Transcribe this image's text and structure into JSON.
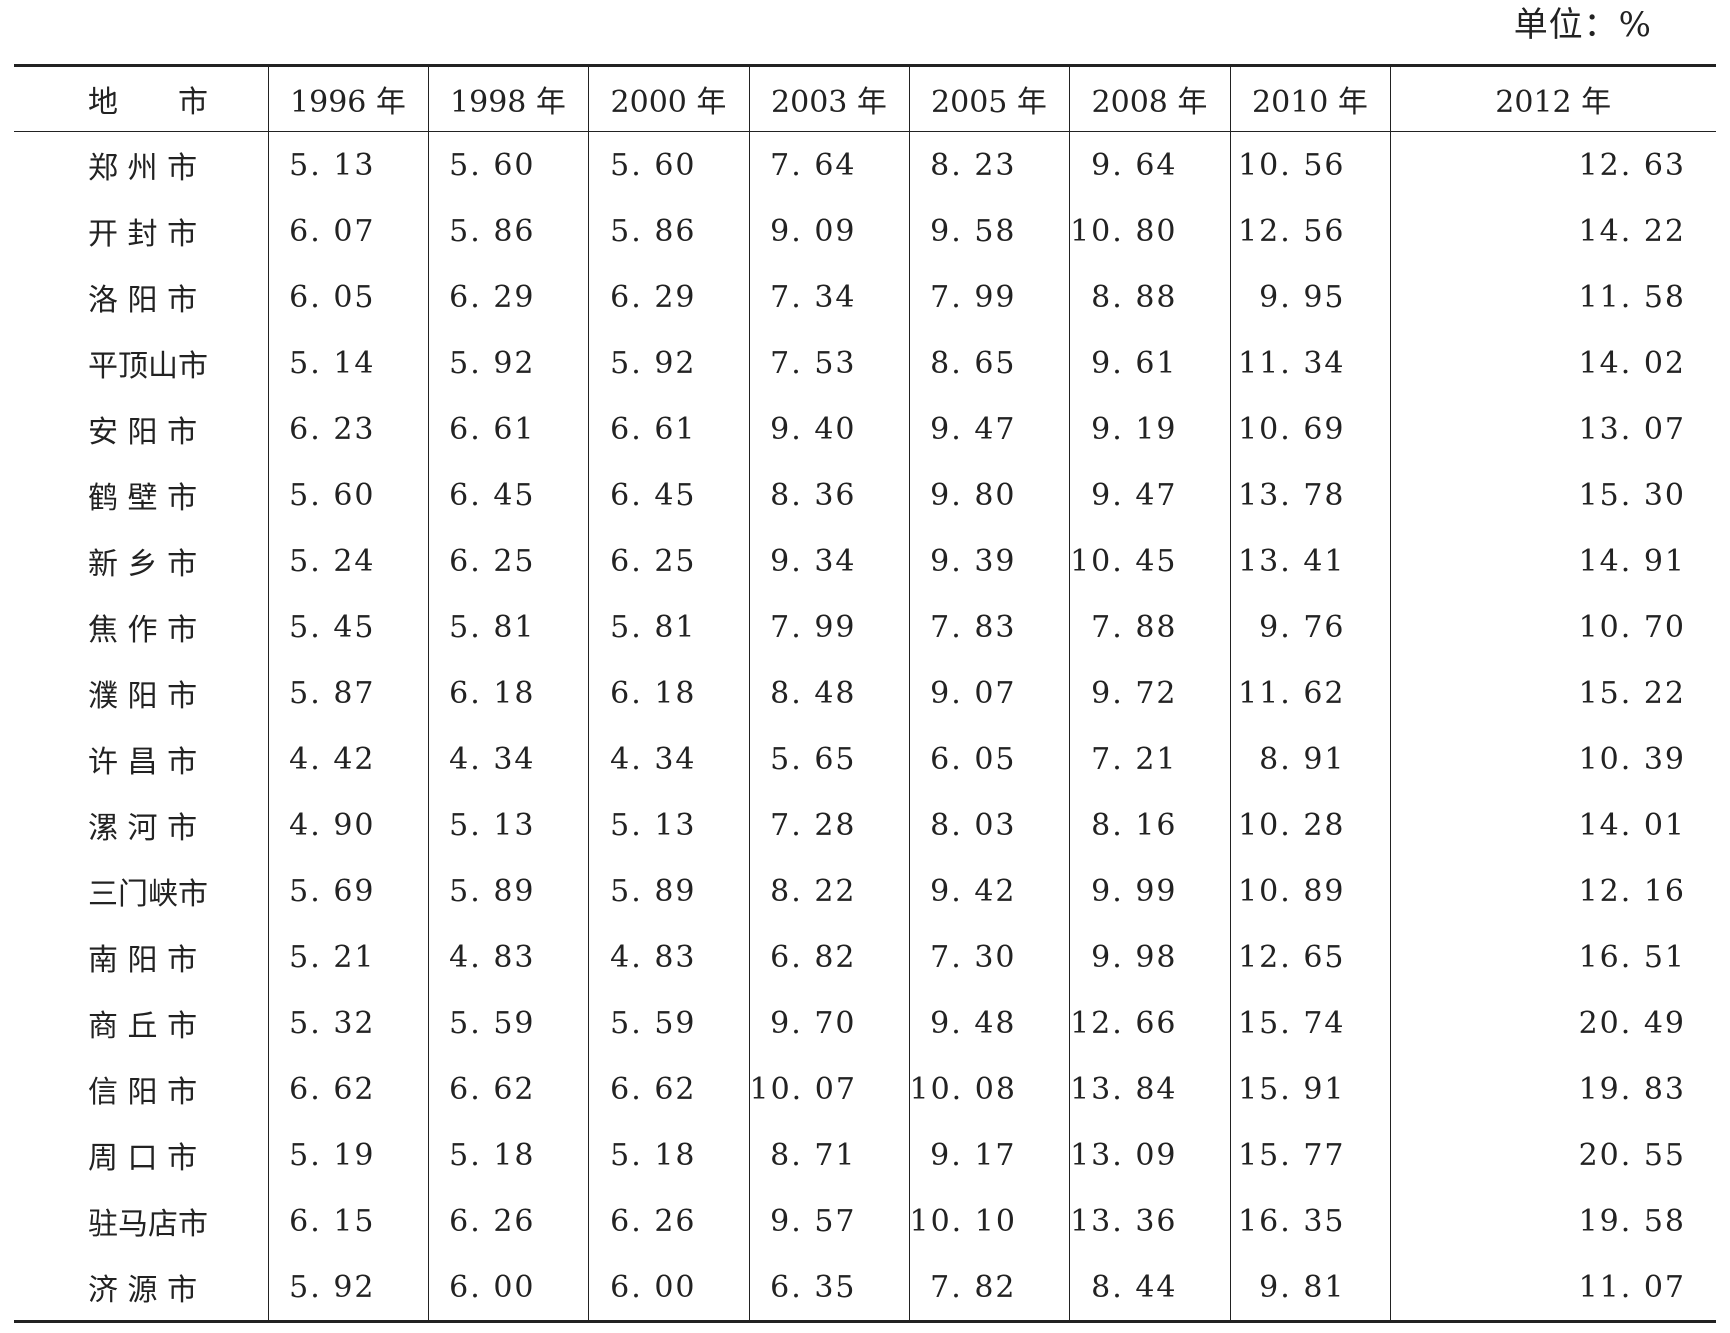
{
  "unit_label": "单位：%",
  "header": {
    "city": "地　　市",
    "years": [
      "1996 年",
      "1998 年",
      "2000 年",
      "2003 年",
      "2005 年",
      "2008 年",
      "2010 年",
      "2012 年"
    ]
  },
  "rows": [
    {
      "city": "郑 州 市",
      "values": [
        "5. 13",
        "5. 60",
        "5. 60",
        "7. 64",
        "8. 23",
        "9. 64",
        "10. 56",
        "12. 63"
      ]
    },
    {
      "city": "开 封 市",
      "values": [
        "6. 07",
        "5. 86",
        "5. 86",
        "9. 09",
        "9. 58",
        "10. 80",
        "12. 56",
        "14. 22"
      ]
    },
    {
      "city": "洛 阳 市",
      "values": [
        "6. 05",
        "6. 29",
        "6. 29",
        "7. 34",
        "7. 99",
        "8. 88",
        "9. 95",
        "11. 58"
      ]
    },
    {
      "city": "平顶山市",
      "values": [
        "5. 14",
        "5. 92",
        "5. 92",
        "7. 53",
        "8. 65",
        "9. 61",
        "11. 34",
        "14. 02"
      ]
    },
    {
      "city": "安 阳 市",
      "values": [
        "6. 23",
        "6. 61",
        "6. 61",
        "9. 40",
        "9. 47",
        "9. 19",
        "10. 69",
        "13. 07"
      ]
    },
    {
      "city": "鹤 壁 市",
      "values": [
        "5. 60",
        "6. 45",
        "6. 45",
        "8. 36",
        "9. 80",
        "9. 47",
        "13. 78",
        "15. 30"
      ]
    },
    {
      "city": "新 乡 市",
      "values": [
        "5. 24",
        "6. 25",
        "6. 25",
        "9. 34",
        "9. 39",
        "10. 45",
        "13. 41",
        "14. 91"
      ]
    },
    {
      "city": "焦 作 市",
      "values": [
        "5. 45",
        "5. 81",
        "5. 81",
        "7. 99",
        "7. 83",
        "7. 88",
        "9. 76",
        "10. 70"
      ]
    },
    {
      "city": "濮 阳 市",
      "values": [
        "5. 87",
        "6. 18",
        "6. 18",
        "8. 48",
        "9. 07",
        "9. 72",
        "11. 62",
        "15. 22"
      ]
    },
    {
      "city": "许 昌 市",
      "values": [
        "4. 42",
        "4. 34",
        "4. 34",
        "5. 65",
        "6. 05",
        "7. 21",
        "8. 91",
        "10. 39"
      ]
    },
    {
      "city": "漯 河 市",
      "values": [
        "4. 90",
        "5. 13",
        "5. 13",
        "7. 28",
        "8. 03",
        "8. 16",
        "10. 28",
        "14. 01"
      ]
    },
    {
      "city": "三门峡市",
      "values": [
        "5. 69",
        "5. 89",
        "5. 89",
        "8. 22",
        "9. 42",
        "9. 99",
        "10. 89",
        "12. 16"
      ]
    },
    {
      "city": "南 阳 市",
      "values": [
        "5. 21",
        "4. 83",
        "4. 83",
        "6. 82",
        "7. 30",
        "9. 98",
        "12. 65",
        "16. 51"
      ]
    },
    {
      "city": "商 丘 市",
      "values": [
        "5. 32",
        "5. 59",
        "5. 59",
        "9. 70",
        "9. 48",
        "12. 66",
        "15. 74",
        "20. 49"
      ]
    },
    {
      "city": "信 阳 市",
      "values": [
        "6. 62",
        "6. 62",
        "6. 62",
        "10. 07",
        "10. 08",
        "13. 84",
        "15. 91",
        "19. 83"
      ]
    },
    {
      "city": "周 口 市",
      "values": [
        "5. 19",
        "5. 18",
        "5. 18",
        "8. 71",
        "9. 17",
        "13. 09",
        "15. 77",
        "20. 55"
      ]
    },
    {
      "city": "驻马店市",
      "values": [
        "6. 15",
        "6. 26",
        "6. 26",
        "9. 57",
        "10. 10",
        "13. 36",
        "16. 35",
        "19. 58"
      ]
    },
    {
      "city": "济 源 市",
      "values": [
        "5. 92",
        "6. 00",
        "6. 00",
        "6. 35",
        "7. 82",
        "8. 44",
        "9. 81",
        "11. 07"
      ]
    }
  ]
}
